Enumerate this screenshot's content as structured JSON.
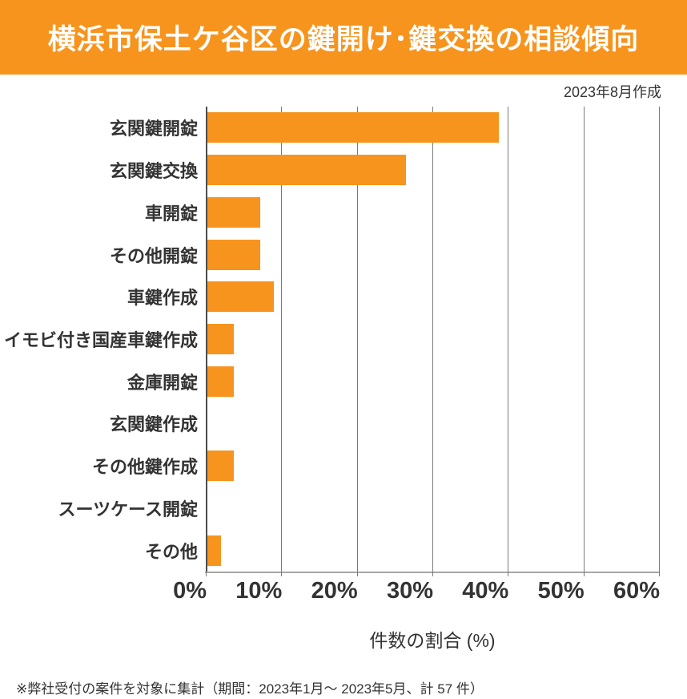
{
  "header": {
    "title": "横浜市保土ケ谷区の鍵開け･鍵交換の相談傾向",
    "bg_color": "#F7941D",
    "text_color": "#FFFFFF"
  },
  "created_label": "2023年8月作成",
  "chart_data": {
    "type": "bar",
    "orientation": "horizontal",
    "title": "横浜市保土ケ谷区の鍵開け･鍵交換の相談傾向",
    "categories": [
      "玄関鍵開錠",
      "玄関鍵交換",
      "車開錠",
      "その他開錠",
      "車鍵作成",
      "イモビ付き国産車鍵作成",
      "金庫開錠",
      "玄関鍵作成",
      "その他鍵作成",
      "スーツケース開錠",
      "その他"
    ],
    "values": [
      38.6,
      26.3,
      7.0,
      7.0,
      8.8,
      3.5,
      3.5,
      0,
      3.5,
      0,
      1.8
    ],
    "xlabel": "件数の割合 (%)",
    "x_tick_labels": [
      "0%",
      "10%",
      "20%",
      "30%",
      "40%",
      "50%",
      "60%"
    ],
    "xlim": [
      0,
      60
    ],
    "bar_color": "#F7941D",
    "grid": true,
    "gridline_color": "#7a7a7a",
    "legend": false
  },
  "footnote": "※弊社受付の案件を対象に集計（期間：2023年1月～ 2023年5月、計 57 件）"
}
